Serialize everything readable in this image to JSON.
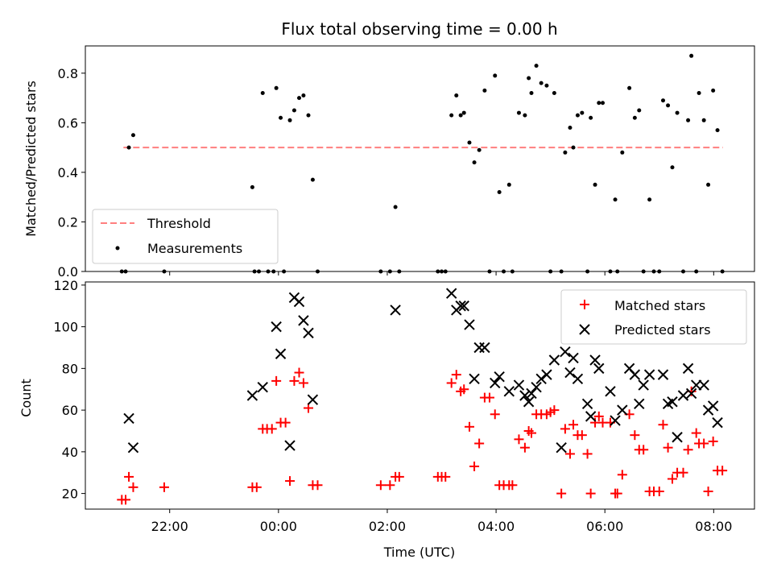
{
  "chart_data": [
    {
      "type": "scatter",
      "title": "Flux total observing time = 0.00 h",
      "xlabel": "",
      "ylabel": "Matched/Predicted stars",
      "xlim": [
        -3.55,
        8.75
      ],
      "ylim": [
        0.0,
        0.91
      ],
      "yticks": [
        0.0,
        0.2,
        0.4,
        0.6,
        0.8
      ],
      "ytick_labels": [
        "0.0",
        "0.2",
        "0.4",
        "0.6",
        "0.8"
      ],
      "legend": {
        "placement": "lower-left",
        "entries": [
          "Threshold",
          "Measurements"
        ]
      },
      "threshold": {
        "name": "Threshold",
        "y": 0.5,
        "x_start": -2.85,
        "x_end": 8.17,
        "color": "#ff7f7f",
        "style": "dashed"
      },
      "series": [
        {
          "name": "Measurements",
          "color": "#000000",
          "marker": "dot",
          "points": [
            [
              -2.88,
              0.0
            ],
            [
              -2.81,
              0.0
            ],
            [
              -2.75,
              0.5
            ],
            [
              -2.67,
              0.55
            ],
            [
              -2.1,
              0.0
            ],
            [
              -0.48,
              0.34
            ],
            [
              -0.44,
              0.0
            ],
            [
              -0.36,
              0.0
            ],
            [
              -0.29,
              0.72
            ],
            [
              -0.19,
              0.0
            ],
            [
              -0.09,
              0.0
            ],
            [
              -0.04,
              0.74
            ],
            [
              0.04,
              0.62
            ],
            [
              0.1,
              0.0
            ],
            [
              0.21,
              0.61
            ],
            [
              0.29,
              0.65
            ],
            [
              0.38,
              0.7
            ],
            [
              0.46,
              0.71
            ],
            [
              0.55,
              0.63
            ],
            [
              0.63,
              0.37
            ],
            [
              0.72,
              0.0
            ],
            [
              1.88,
              0.0
            ],
            [
              2.05,
              0.0
            ],
            [
              2.15,
              0.26
            ],
            [
              2.22,
              0.0
            ],
            [
              2.93,
              0.0
            ],
            [
              3.0,
              0.0
            ],
            [
              3.07,
              0.0
            ],
            [
              3.18,
              0.63
            ],
            [
              3.27,
              0.71
            ],
            [
              3.35,
              0.63
            ],
            [
              3.41,
              0.64
            ],
            [
              3.51,
              0.52
            ],
            [
              3.6,
              0.44
            ],
            [
              3.69,
              0.49
            ],
            [
              3.79,
              0.73
            ],
            [
              3.88,
              0.0
            ],
            [
              3.98,
              0.79
            ],
            [
              4.06,
              0.32
            ],
            [
              4.14,
              0.0
            ],
            [
              4.24,
              0.35
            ],
            [
              4.3,
              0.0
            ],
            [
              4.42,
              0.64
            ],
            [
              4.53,
              0.63
            ],
            [
              4.6,
              0.78
            ],
            [
              4.65,
              0.72
            ],
            [
              4.74,
              0.83
            ],
            [
              4.83,
              0.76
            ],
            [
              4.93,
              0.75
            ],
            [
              5.0,
              0.0
            ],
            [
              5.07,
              0.72
            ],
            [
              5.2,
              0.0
            ],
            [
              5.27,
              0.48
            ],
            [
              5.36,
              0.58
            ],
            [
              5.42,
              0.5
            ],
            [
              5.5,
              0.63
            ],
            [
              5.58,
              0.64
            ],
            [
              5.68,
              0.0
            ],
            [
              5.74,
              0.62
            ],
            [
              5.82,
              0.35
            ],
            [
              5.89,
              0.68
            ],
            [
              5.96,
              0.68
            ],
            [
              6.1,
              0.0
            ],
            [
              6.19,
              0.29
            ],
            [
              6.23,
              0.0
            ],
            [
              6.32,
              0.48
            ],
            [
              6.45,
              0.74
            ],
            [
              6.55,
              0.62
            ],
            [
              6.63,
              0.65
            ],
            [
              6.71,
              0.0
            ],
            [
              6.82,
              0.29
            ],
            [
              6.9,
              0.0
            ],
            [
              7.0,
              0.0
            ],
            [
              7.07,
              0.69
            ],
            [
              7.16,
              0.67
            ],
            [
              7.24,
              0.42
            ],
            [
              7.33,
              0.64
            ],
            [
              7.44,
              0.0
            ],
            [
              7.53,
              0.61
            ],
            [
              7.59,
              0.87
            ],
            [
              7.68,
              0.0
            ],
            [
              7.73,
              0.72
            ],
            [
              7.82,
              0.61
            ],
            [
              7.9,
              0.35
            ],
            [
              7.99,
              0.73
            ],
            [
              8.07,
              0.57
            ],
            [
              8.16,
              0.0
            ]
          ]
        }
      ]
    },
    {
      "type": "scatter",
      "title": "",
      "xlabel": "Time (UTC)",
      "ylabel": "Count",
      "xlim": [
        -3.55,
        8.75
      ],
      "ylim": [
        12.5,
        121.5
      ],
      "yticks": [
        20,
        40,
        60,
        80,
        100,
        120
      ],
      "ytick_labels": [
        "20",
        "40",
        "60",
        "80",
        "100",
        "120"
      ],
      "xticks": [
        -2,
        0,
        2,
        4,
        6,
        8
      ],
      "xtick_labels": [
        "22:00",
        "00:00",
        "02:00",
        "04:00",
        "06:00",
        "08:00"
      ],
      "legend": {
        "placement": "upper-right",
        "entries": [
          "Matched stars",
          "Predicted stars"
        ]
      },
      "series": [
        {
          "name": "Matched stars",
          "color": "#ff0000",
          "marker": "plus",
          "points": [
            [
              -2.88,
              17
            ],
            [
              -2.81,
              17
            ],
            [
              -2.75,
              28
            ],
            [
              -2.67,
              23
            ],
            [
              -2.1,
              23
            ],
            [
              -0.48,
              23
            ],
            [
              -0.4,
              23
            ],
            [
              -0.29,
              51
            ],
            [
              -0.21,
              51
            ],
            [
              -0.12,
              51
            ],
            [
              -0.04,
              74
            ],
            [
              0.04,
              54
            ],
            [
              0.13,
              54
            ],
            [
              0.21,
              26
            ],
            [
              0.29,
              74
            ],
            [
              0.38,
              78
            ],
            [
              0.46,
              73
            ],
            [
              0.55,
              61
            ],
            [
              0.63,
              24
            ],
            [
              0.72,
              24
            ],
            [
              1.88,
              24
            ],
            [
              2.05,
              24
            ],
            [
              2.15,
              28
            ],
            [
              2.22,
              28
            ],
            [
              2.93,
              28
            ],
            [
              3.0,
              28
            ],
            [
              3.07,
              28
            ],
            [
              3.18,
              73
            ],
            [
              3.27,
              77
            ],
            [
              3.35,
              69
            ],
            [
              3.41,
              70
            ],
            [
              3.51,
              52
            ],
            [
              3.6,
              33
            ],
            [
              3.69,
              44
            ],
            [
              3.79,
              66
            ],
            [
              3.88,
              66
            ],
            [
              3.98,
              58
            ],
            [
              4.06,
              24
            ],
            [
              4.14,
              24
            ],
            [
              4.24,
              24
            ],
            [
              4.3,
              24
            ],
            [
              4.42,
              46
            ],
            [
              4.53,
              42
            ],
            [
              4.6,
              50
            ],
            [
              4.65,
              49
            ],
            [
              4.74,
              58
            ],
            [
              4.83,
              58
            ],
            [
              4.93,
              58
            ],
            [
              5.0,
              59
            ],
            [
              5.07,
              60
            ],
            [
              5.2,
              20
            ],
            [
              5.27,
              51
            ],
            [
              5.36,
              39
            ],
            [
              5.42,
              53
            ],
            [
              5.5,
              48
            ],
            [
              5.58,
              48
            ],
            [
              5.68,
              39
            ],
            [
              5.74,
              20
            ],
            [
              5.82,
              54
            ],
            [
              5.89,
              57
            ],
            [
              5.96,
              54
            ],
            [
              6.1,
              54
            ],
            [
              6.19,
              20
            ],
            [
              6.23,
              20
            ],
            [
              6.32,
              29
            ],
            [
              6.45,
              58
            ],
            [
              6.55,
              48
            ],
            [
              6.63,
              41
            ],
            [
              6.71,
              41
            ],
            [
              6.82,
              21
            ],
            [
              6.9,
              21
            ],
            [
              7.0,
              21
            ],
            [
              7.07,
              53
            ],
            [
              7.16,
              42
            ],
            [
              7.24,
              27
            ],
            [
              7.33,
              30
            ],
            [
              7.44,
              30
            ],
            [
              7.53,
              41
            ],
            [
              7.59,
              69
            ],
            [
              7.68,
              49
            ],
            [
              7.73,
              44
            ],
            [
              7.82,
              44
            ],
            [
              7.9,
              21
            ],
            [
              7.99,
              45
            ],
            [
              8.07,
              31
            ],
            [
              8.16,
              31
            ]
          ]
        },
        {
          "name": "Predicted stars",
          "color": "#000000",
          "marker": "x",
          "points": [
            [
              -2.75,
              56
            ],
            [
              -2.67,
              42
            ],
            [
              -0.48,
              67
            ],
            [
              -0.29,
              71
            ],
            [
              -0.04,
              100
            ],
            [
              0.04,
              87
            ],
            [
              0.21,
              43
            ],
            [
              0.29,
              114
            ],
            [
              0.38,
              112
            ],
            [
              0.46,
              103
            ],
            [
              0.55,
              97
            ],
            [
              0.63,
              65
            ],
            [
              2.15,
              108
            ],
            [
              3.18,
              116
            ],
            [
              3.27,
              108
            ],
            [
              3.35,
              110
            ],
            [
              3.41,
              110
            ],
            [
              3.51,
              101
            ],
            [
              3.6,
              75
            ],
            [
              3.69,
              90
            ],
            [
              3.79,
              90
            ],
            [
              3.98,
              73
            ],
            [
              4.06,
              76
            ],
            [
              4.24,
              69
            ],
            [
              4.42,
              72
            ],
            [
              4.53,
              67
            ],
            [
              4.6,
              64
            ],
            [
              4.65,
              68
            ],
            [
              4.74,
              71
            ],
            [
              4.83,
              75
            ],
            [
              4.93,
              77
            ],
            [
              5.07,
              84
            ],
            [
              5.2,
              42
            ],
            [
              5.27,
              88
            ],
            [
              5.36,
              78
            ],
            [
              5.42,
              85
            ],
            [
              5.5,
              75
            ],
            [
              5.68,
              63
            ],
            [
              5.74,
              57
            ],
            [
              5.82,
              84
            ],
            [
              5.89,
              80
            ],
            [
              6.1,
              69
            ],
            [
              6.19,
              55
            ],
            [
              6.32,
              60
            ],
            [
              6.45,
              80
            ],
            [
              6.55,
              77
            ],
            [
              6.63,
              63
            ],
            [
              6.71,
              72
            ],
            [
              6.82,
              77
            ],
            [
              7.07,
              77
            ],
            [
              7.16,
              63
            ],
            [
              7.24,
              64
            ],
            [
              7.33,
              47
            ],
            [
              7.44,
              67
            ],
            [
              7.53,
              80
            ],
            [
              7.59,
              68
            ],
            [
              7.68,
              72
            ],
            [
              7.82,
              72
            ],
            [
              7.9,
              60
            ],
            [
              7.99,
              62
            ],
            [
              8.07,
              54
            ]
          ]
        }
      ]
    }
  ]
}
